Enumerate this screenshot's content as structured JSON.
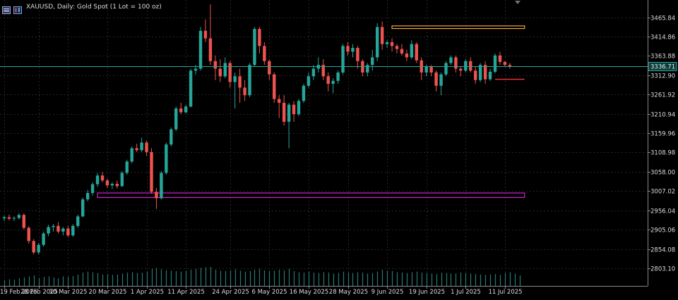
{
  "header": {
    "title": "XAUUSD, Daily:  Gold Spot (1 Lot = 100 oz)"
  },
  "colors": {
    "background": "#000000",
    "up": "#26a69a",
    "down": "#ef5350",
    "grid": "#262626",
    "axis_text": "#dcdcdc",
    "price_line": "#26a69a",
    "orange_zone": "#f4a23a",
    "magenta_zone": "#d020d0",
    "red_marker": "#e83030"
  },
  "chart_data": {
    "type": "candlestick",
    "symbol": "XAUUSD",
    "timeframe": "Daily",
    "ylim": [
      2780,
      3500
    ],
    "y_ticks": [
      "3465.84",
      "3414.86",
      "3363.88",
      "3312.90",
      "3261.92",
      "3210.94",
      "3159.96",
      "3108.98",
      "3058.00",
      "3007.02",
      "2956.04",
      "2905.06",
      "2854.08",
      "2803.10"
    ],
    "x_ticks": [
      {
        "label": "19 Feb 2025",
        "index": 0
      },
      {
        "label": "28 Feb 2025",
        "index": 7
      },
      {
        "label": "10 Mar 2025",
        "index": 13
      },
      {
        "label": "20 Mar 2025",
        "index": 21
      },
      {
        "label": "1 Apr 2025",
        "index": 29
      },
      {
        "label": "11 Apr 2025",
        "index": 37
      },
      {
        "label": "24 Apr 2025",
        "index": 46
      },
      {
        "label": "6 May 2025",
        "index": 54
      },
      {
        "label": "16 May 2025",
        "index": 62
      },
      {
        "label": "28 May 2025",
        "index": 70
      },
      {
        "label": "9 Jun 2025",
        "index": 78
      },
      {
        "label": "19 Jun 2025",
        "index": 86
      },
      {
        "label": "1 Jul 2025",
        "index": 94
      },
      {
        "label": "11 Jul 2025",
        "index": 102
      }
    ],
    "current_price": "3336.71",
    "current_price_value": 3336.71,
    "grid": true,
    "candles": [
      [
        2935,
        2942,
        2928,
        2938
      ],
      [
        2938,
        2945,
        2930,
        2934
      ],
      [
        2934,
        2940,
        2928,
        2936
      ],
      [
        2936,
        2948,
        2932,
        2944
      ],
      [
        2944,
        2948,
        2905,
        2910
      ],
      [
        2910,
        2915,
        2868,
        2875
      ],
      [
        2875,
        2880,
        2840,
        2845
      ],
      [
        2845,
        2870,
        2840,
        2865
      ],
      [
        2865,
        2900,
        2860,
        2895
      ],
      [
        2895,
        2918,
        2888,
        2912
      ],
      [
        2912,
        2920,
        2900,
        2915
      ],
      [
        2915,
        2925,
        2895,
        2900
      ],
      [
        2900,
        2912,
        2890,
        2908
      ],
      [
        2908,
        2915,
        2885,
        2890
      ],
      [
        2890,
        2920,
        2886,
        2915
      ],
      [
        2915,
        2945,
        2910,
        2940
      ],
      [
        2940,
        2990,
        2938,
        2985
      ],
      [
        2985,
        3010,
        2980,
        3002
      ],
      [
        3002,
        3030,
        2995,
        3025
      ],
      [
        3025,
        3055,
        3018,
        3048
      ],
      [
        3048,
        3057,
        3030,
        3035
      ],
      [
        3035,
        3040,
        3015,
        3022
      ],
      [
        3022,
        3030,
        3012,
        3026
      ],
      [
        3026,
        3035,
        3014,
        3020
      ],
      [
        3020,
        3060,
        3018,
        3055
      ],
      [
        3055,
        3090,
        3050,
        3085
      ],
      [
        3085,
        3125,
        3080,
        3120
      ],
      [
        3120,
        3132,
        3110,
        3115
      ],
      [
        3115,
        3148,
        3110,
        3135
      ],
      [
        3135,
        3140,
        3100,
        3110
      ],
      [
        3110,
        3120,
        3000,
        3005
      ],
      [
        3005,
        3015,
        2960,
        2988
      ],
      [
        2988,
        3060,
        2985,
        3055
      ],
      [
        3055,
        3135,
        3050,
        3130
      ],
      [
        3130,
        3175,
        3125,
        3170
      ],
      [
        3170,
        3230,
        3165,
        3225
      ],
      [
        3225,
        3240,
        3210,
        3215
      ],
      [
        3215,
        3235,
        3212,
        3230
      ],
      [
        3230,
        3330,
        3228,
        3325
      ],
      [
        3325,
        3340,
        3315,
        3330
      ],
      [
        3330,
        3440,
        3325,
        3430
      ],
      [
        3430,
        3460,
        3400,
        3410
      ],
      [
        3410,
        3500,
        3340,
        3350
      ],
      [
        3350,
        3365,
        3300,
        3330
      ],
      [
        3330,
        3355,
        3295,
        3310
      ],
      [
        3310,
        3360,
        3305,
        3345
      ],
      [
        3345,
        3350,
        3280,
        3295
      ],
      [
        3295,
        3320,
        3225,
        3310
      ],
      [
        3310,
        3330,
        3240,
        3280
      ],
      [
        3280,
        3300,
        3245,
        3260
      ],
      [
        3260,
        3345,
        3255,
        3340
      ],
      [
        3340,
        3440,
        3335,
        3435
      ],
      [
        3435,
        3440,
        3370,
        3390
      ],
      [
        3390,
        3400,
        3340,
        3350
      ],
      [
        3350,
        3355,
        3300,
        3315
      ],
      [
        3315,
        3320,
        3240,
        3250
      ],
      [
        3250,
        3260,
        3200,
        3240
      ],
      [
        3240,
        3260,
        3180,
        3190
      ],
      [
        3190,
        3240,
        3120,
        3235
      ],
      [
        3235,
        3245,
        3190,
        3210
      ],
      [
        3210,
        3250,
        3205,
        3245
      ],
      [
        3245,
        3290,
        3240,
        3285
      ],
      [
        3285,
        3320,
        3280,
        3310
      ],
      [
        3310,
        3340,
        3300,
        3330
      ],
      [
        3330,
        3360,
        3320,
        3340
      ],
      [
        3340,
        3355,
        3300,
        3310
      ],
      [
        3310,
        3320,
        3270,
        3290
      ],
      [
        3290,
        3305,
        3265,
        3298
      ],
      [
        3298,
        3325,
        3290,
        3320
      ],
      [
        3320,
        3395,
        3315,
        3390
      ],
      [
        3390,
        3400,
        3365,
        3375
      ],
      [
        3375,
        3395,
        3360,
        3385
      ],
      [
        3385,
        3390,
        3330,
        3350
      ],
      [
        3350,
        3355,
        3310,
        3320
      ],
      [
        3320,
        3345,
        3310,
        3340
      ],
      [
        3340,
        3380,
        3325,
        3360
      ],
      [
        3360,
        3450,
        3350,
        3440
      ],
      [
        3440,
        3455,
        3380,
        3395
      ],
      [
        3395,
        3405,
        3385,
        3400
      ],
      [
        3400,
        3410,
        3375,
        3390
      ],
      [
        3390,
        3395,
        3370,
        3382
      ],
      [
        3382,
        3395,
        3365,
        3370
      ],
      [
        3370,
        3380,
        3350,
        3360
      ],
      [
        3360,
        3405,
        3355,
        3395
      ],
      [
        3395,
        3400,
        3345,
        3352
      ],
      [
        3352,
        3360,
        3300,
        3320
      ],
      [
        3320,
        3340,
        3310,
        3335
      ],
      [
        3335,
        3340,
        3310,
        3320
      ],
      [
        3320,
        3325,
        3270,
        3285
      ],
      [
        3285,
        3320,
        3260,
        3315
      ],
      [
        3315,
        3350,
        3310,
        3345
      ],
      [
        3345,
        3365,
        3340,
        3360
      ],
      [
        3360,
        3365,
        3320,
        3330
      ],
      [
        3330,
        3335,
        3310,
        3325
      ],
      [
        3325,
        3355,
        3320,
        3350
      ],
      [
        3350,
        3360,
        3320,
        3325
      ],
      [
        3325,
        3335,
        3290,
        3300
      ],
      [
        3300,
        3345,
        3295,
        3340
      ],
      [
        3340,
        3350,
        3290,
        3302
      ],
      [
        3302,
        3330,
        3298,
        3322
      ],
      [
        3322,
        3370,
        3318,
        3365
      ],
      [
        3365,
        3375,
        3340,
        3348
      ],
      [
        3348,
        3350,
        3335,
        3340
      ],
      [
        3340,
        3345,
        3330,
        3336.71
      ]
    ],
    "volumes": [
      0.3,
      0.35,
      0.32,
      0.4,
      0.45,
      0.5,
      0.55,
      0.42,
      0.48,
      0.5,
      0.45,
      0.4,
      0.5,
      0.48,
      0.52,
      0.6,
      0.7,
      0.75,
      0.72,
      0.68,
      0.6,
      0.62,
      0.58,
      0.6,
      0.65,
      0.7,
      0.72,
      0.68,
      0.7,
      0.75,
      0.9,
      0.95,
      0.88,
      0.82,
      0.8,
      0.78,
      0.75,
      0.8,
      0.85,
      0.9,
      0.95,
      0.98,
      1.0,
      0.85,
      0.8,
      0.78,
      0.82,
      0.88,
      0.8,
      0.75,
      0.78,
      0.85,
      0.9,
      0.82,
      0.78,
      0.8,
      0.85,
      0.82,
      0.9,
      0.78,
      0.72,
      0.7,
      0.75,
      0.7,
      0.68,
      0.72,
      0.7,
      0.65,
      0.68,
      0.75,
      0.7,
      0.68,
      0.72,
      0.7,
      0.65,
      0.68,
      0.75,
      0.85,
      0.8,
      0.78,
      0.72,
      0.7,
      0.68,
      0.72,
      0.75,
      0.7,
      0.68,
      0.65,
      0.62,
      0.7,
      0.68,
      0.65,
      0.66,
      0.7,
      0.68,
      0.65,
      0.62,
      0.6,
      0.58,
      0.6,
      0.62,
      0.58,
      0.68,
      0.72,
      0.65,
      0.55
    ],
    "zones": [
      {
        "name": "orange-zone",
        "color_key": "orange_zone",
        "y_top": 3443,
        "y_bottom": 3436,
        "from_index": 79,
        "to_index": 106
      },
      {
        "name": "magenta-zone",
        "color_key": "magenta_zone",
        "y_top": 3002,
        "y_bottom": 2990,
        "from_index": 19,
        "to_index": 106
      }
    ],
    "markers": [
      {
        "name": "red-level",
        "color_key": "red_marker",
        "y": 3302,
        "from_index": 100,
        "to_index": 106
      }
    ]
  }
}
